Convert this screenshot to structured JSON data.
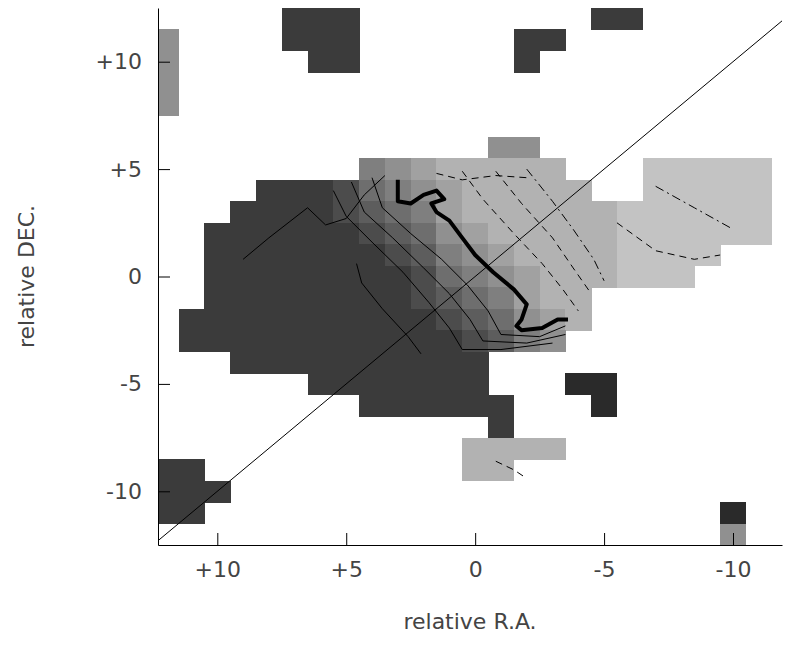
{
  "chart_data": {
    "type": "heatmap",
    "x_label": "relative R.A.",
    "y_label": "relative DEC.",
    "xlim": [
      12.3,
      -11.9
    ],
    "ylim": [
      -12.5,
      12.5
    ],
    "xticks": [
      {
        "value": 10,
        "label": "+10"
      },
      {
        "value": 5,
        "label": "+5"
      },
      0,
      -5,
      -10
    ],
    "yticks": [
      {
        "value": 10,
        "label": "+10"
      },
      {
        "value": 5,
        "label": "+5"
      },
      0,
      -5,
      -10
    ],
    "zlim": [
      -100,
      100
    ],
    "cell_x": [
      12,
      11,
      10,
      9,
      8,
      7,
      6,
      5,
      4,
      3,
      2,
      1,
      0,
      -1,
      -2,
      -3,
      -4,
      -5,
      -6,
      -7,
      -8,
      -9,
      -10,
      -11,
      -12
    ],
    "cell_y": [
      12,
      11,
      10,
      9,
      8,
      7,
      6,
      5,
      4,
      3,
      2,
      1,
      0,
      -1,
      -2,
      -3,
      -4,
      -5,
      -6,
      -7,
      -8,
      -9,
      -10,
      -11,
      -12
    ],
    "cells": [
      [
        null,
        null,
        null,
        null,
        null,
        80,
        80,
        80,
        null,
        null,
        null,
        null,
        null,
        null,
        null,
        null,
        null,
        80,
        80,
        null,
        null,
        null,
        null,
        null,
        null
      ],
      [
        -20,
        null,
        null,
        null,
        null,
        80,
        80,
        80,
        null,
        null,
        null,
        null,
        null,
        null,
        80,
        80,
        null,
        null,
        null,
        null,
        null,
        null,
        null,
        null,
        null
      ],
      [
        -20,
        null,
        null,
        null,
        null,
        null,
        80,
        80,
        null,
        null,
        null,
        null,
        null,
        null,
        80,
        null,
        null,
        null,
        null,
        null,
        null,
        null,
        null,
        null,
        null
      ],
      [
        -20,
        null,
        null,
        null,
        null,
        null,
        null,
        null,
        null,
        null,
        null,
        null,
        null,
        null,
        null,
        null,
        null,
        null,
        null,
        null,
        null,
        null,
        null,
        null,
        null
      ],
      [
        -20,
        null,
        null,
        null,
        null,
        null,
        null,
        null,
        null,
        null,
        null,
        null,
        null,
        null,
        null,
        null,
        null,
        null,
        null,
        null,
        null,
        null,
        null,
        null,
        null
      ],
      [
        null,
        null,
        null,
        null,
        null,
        null,
        null,
        null,
        null,
        null,
        null,
        null,
        null,
        null,
        null,
        null,
        null,
        null,
        null,
        null,
        null,
        null,
        null,
        null,
        null
      ],
      [
        null,
        null,
        null,
        null,
        null,
        null,
        null,
        null,
        null,
        null,
        null,
        null,
        null,
        -20,
        -20,
        null,
        null,
        null,
        null,
        null,
        null,
        null,
        null,
        null,
        null
      ],
      [
        null,
        null,
        null,
        null,
        null,
        null,
        null,
        null,
        0,
        -20,
        -40,
        -60,
        -60,
        -60,
        -60,
        -60,
        null,
        null,
        null,
        -80,
        -80,
        -80,
        -80,
        -80,
        null
      ],
      [
        null,
        null,
        null,
        null,
        80,
        80,
        80,
        60,
        20,
        0,
        -20,
        -40,
        -60,
        -60,
        -60,
        -60,
        -60,
        null,
        null,
        -80,
        -80,
        -80,
        -80,
        -80,
        null
      ],
      [
        null,
        null,
        null,
        80,
        80,
        80,
        80,
        60,
        40,
        20,
        0,
        -40,
        -60,
        -60,
        -60,
        -60,
        -60,
        -60,
        -80,
        -80,
        -80,
        -80,
        -80,
        -80,
        null
      ],
      [
        null,
        null,
        80,
        80,
        80,
        80,
        80,
        80,
        60,
        40,
        20,
        -20,
        -40,
        -60,
        -60,
        -60,
        -60,
        -60,
        -80,
        -80,
        -80,
        -80,
        -80,
        -80,
        null
      ],
      [
        null,
        null,
        80,
        80,
        80,
        80,
        80,
        80,
        80,
        60,
        40,
        0,
        -20,
        -40,
        -60,
        -60,
        -60,
        -60,
        -80,
        -80,
        -80,
        -80,
        null,
        null,
        null
      ],
      [
        null,
        null,
        80,
        80,
        80,
        80,
        80,
        80,
        80,
        80,
        60,
        20,
        0,
        -20,
        -40,
        -60,
        -60,
        -60,
        -80,
        -80,
        -80,
        null,
        null,
        null,
        null
      ],
      [
        null,
        null,
        80,
        80,
        80,
        80,
        80,
        80,
        80,
        80,
        60,
        40,
        20,
        0,
        -40,
        -60,
        -60,
        null,
        null,
        null,
        null,
        null,
        null,
        null,
        null
      ],
      [
        null,
        80,
        80,
        80,
        80,
        80,
        80,
        80,
        80,
        80,
        80,
        60,
        40,
        20,
        -20,
        -40,
        -60,
        null,
        null,
        null,
        null,
        null,
        null,
        null,
        null
      ],
      [
        null,
        80,
        80,
        80,
        80,
        80,
        80,
        80,
        80,
        80,
        80,
        80,
        60,
        40,
        0,
        -20,
        null,
        null,
        null,
        null,
        null,
        null,
        null,
        null,
        null
      ],
      [
        null,
        null,
        null,
        80,
        80,
        80,
        80,
        80,
        80,
        80,
        80,
        80,
        80,
        null,
        null,
        null,
        null,
        null,
        null,
        null,
        null,
        null,
        null,
        null,
        null
      ],
      [
        null,
        null,
        null,
        null,
        null,
        null,
        80,
        80,
        80,
        80,
        80,
        80,
        80,
        null,
        null,
        null,
        100,
        100,
        null,
        null,
        null,
        null,
        null,
        null,
        null
      ],
      [
        null,
        null,
        null,
        null,
        null,
        null,
        null,
        null,
        80,
        80,
        80,
        80,
        80,
        80,
        null,
        null,
        null,
        100,
        null,
        null,
        null,
        null,
        null,
        null,
        null
      ],
      [
        null,
        null,
        null,
        null,
        null,
        null,
        null,
        null,
        null,
        null,
        null,
        null,
        null,
        80,
        null,
        null,
        null,
        null,
        null,
        null,
        null,
        null,
        null,
        null,
        null
      ],
      [
        null,
        null,
        null,
        null,
        null,
        null,
        null,
        null,
        null,
        null,
        null,
        null,
        -60,
        -60,
        -60,
        -60,
        null,
        null,
        null,
        null,
        null,
        null,
        null,
        null,
        null
      ],
      [
        80,
        80,
        null,
        null,
        null,
        null,
        null,
        null,
        null,
        null,
        null,
        null,
        -60,
        -60,
        null,
        null,
        null,
        null,
        null,
        null,
        null,
        null,
        null,
        null,
        null
      ],
      [
        80,
        80,
        80,
        null,
        null,
        null,
        null,
        null,
        null,
        null,
        null,
        null,
        null,
        null,
        null,
        null,
        null,
        null,
        null,
        null,
        null,
        null,
        null,
        null,
        null
      ],
      [
        80,
        80,
        null,
        null,
        null,
        null,
        null,
        null,
        null,
        null,
        null,
        null,
        null,
        null,
        null,
        null,
        null,
        null,
        null,
        null,
        null,
        null,
        100,
        null,
        null
      ],
      [
        null,
        null,
        null,
        null,
        null,
        null,
        null,
        null,
        null,
        null,
        null,
        null,
        null,
        null,
        null,
        null,
        null,
        null,
        null,
        null,
        null,
        null,
        -20,
        null,
        null
      ]
    ],
    "series": [
      {
        "type": "contour",
        "line_style": "bold",
        "color": "#000000",
        "x": [
          3,
          3,
          2.5,
          2,
          1.5,
          1.2,
          1.7,
          1.5,
          1,
          0.5,
          0,
          -0.7,
          -1.5,
          -2,
          -1.8,
          -1.6,
          -1.8,
          -2.6,
          -3.2,
          -3.6
        ],
        "y": [
          4.5,
          3.5,
          3.4,
          3.8,
          4,
          3.6,
          3.4,
          3,
          2.6,
          1.8,
          1,
          0.2,
          -0.6,
          -1.3,
          -2,
          -2.3,
          -2.5,
          -2.4,
          -2,
          -2
        ]
      },
      {
        "type": "contour",
        "line_style": "solid",
        "color": "#000000",
        "x": [
          4,
          3.6,
          2.5,
          1.3,
          0.3,
          -0.5,
          -1,
          -2.5,
          -3.5
        ],
        "y": [
          4.6,
          3.2,
          2,
          0.8,
          -0.4,
          -1.6,
          -2.7,
          -2.8,
          -2.3
        ]
      },
      {
        "type": "contour",
        "line_style": "solid",
        "color": "#000000",
        "x": [
          4.8,
          4.3,
          3.2,
          2,
          1,
          0.2,
          -0.3,
          -2,
          -3.5
        ],
        "y": [
          4.4,
          3,
          1.8,
          0.4,
          -0.8,
          -2,
          -3,
          -3.1,
          -2.7
        ]
      },
      {
        "type": "contour",
        "line_style": "solid",
        "color": "#000000",
        "x": [
          5.5,
          5,
          4,
          2.8,
          1.8,
          1,
          0.5,
          -1,
          -3
        ],
        "y": [
          4,
          2.8,
          1.6,
          0.2,
          -1.2,
          -2.4,
          -3.4,
          -3.4,
          -3.1
        ]
      },
      {
        "type": "contour",
        "line_style": "solid",
        "color": "#000000",
        "x": [
          4.6,
          4.4,
          3.6,
          2.6,
          2.1
        ],
        "y": [
          0.6,
          -0.3,
          -1.5,
          -2.8,
          -3.6
        ]
      },
      {
        "type": "contour",
        "line_style": "solid",
        "color": "#000000",
        "x": [
          9,
          8,
          6.5,
          5.8,
          5,
          4.3,
          3.5
        ],
        "y": [
          0.8,
          1.8,
          3.2,
          2.4,
          2.7,
          3.8,
          4.7
        ]
      },
      {
        "type": "contour",
        "line_style": "dashed",
        "color": "#000000",
        "x": [
          0.5,
          -0.3,
          -1.5,
          -2.6,
          -3.4,
          -4
        ],
        "y": [
          4.9,
          3.6,
          2,
          0.6,
          -0.6,
          -1.6
        ]
      },
      {
        "type": "contour",
        "line_style": "dashed",
        "color": "#000000",
        "x": [
          -0.8,
          -1.8,
          -3,
          -3.8,
          -4.5
        ],
        "y": [
          4.9,
          3.4,
          1.8,
          0.4,
          -0.8
        ]
      },
      {
        "type": "contour",
        "line_style": "dashdot",
        "color": "#000000",
        "x": [
          -2,
          -3,
          -3.8,
          -4.6,
          -5
        ],
        "y": [
          5,
          3.5,
          2.2,
          0.8,
          -0.2
        ]
      },
      {
        "type": "contour",
        "line_style": "dashed",
        "color": "#000000",
        "x": [
          1.5,
          0.5,
          -0.8,
          -2
        ],
        "y": [
          4.8,
          4.5,
          4.7,
          4.6
        ]
      },
      {
        "type": "contour",
        "line_style": "dashdot",
        "color": "#000000",
        "x": [
          -7,
          -8.5,
          -10
        ],
        "y": [
          4.2,
          3.2,
          2.2
        ]
      },
      {
        "type": "contour",
        "line_style": "dashed",
        "color": "#000000",
        "x": [
          -5.5,
          -7,
          -8.5,
          -9.5
        ],
        "y": [
          2.5,
          1.2,
          0.8,
          1
        ]
      },
      {
        "type": "contour",
        "line_style": "dashed",
        "color": "#000000",
        "x": [
          -0.8,
          -1.5,
          -2
        ],
        "y": [
          -8.6,
          -9,
          -9.4
        ]
      },
      {
        "type": "line",
        "line_style": "solid",
        "color": "#000000",
        "x": [
          12.5,
          -12.5
        ],
        "y": [
          -12.5,
          12.5
        ]
      }
    ]
  }
}
